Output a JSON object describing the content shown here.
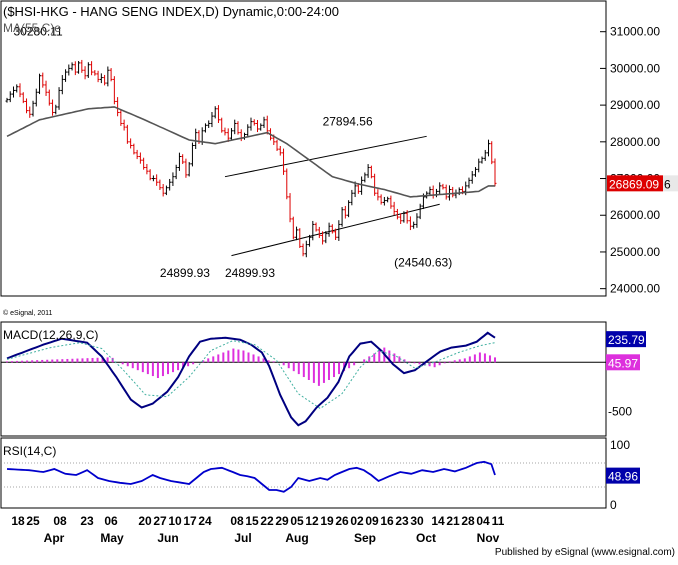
{
  "colors": {
    "background": "#ffffff",
    "frame": "#000000",
    "up_bar": "#000000",
    "down_bar": "#dd0000",
    "ma_line": "#555555",
    "channel": "#000000",
    "last_price_badge": "#dd0000",
    "macd_line": "#000080",
    "macd_signal": "#40b0a0",
    "macd_hist": "#dd30dd",
    "rsi_line": "#0000cc",
    "value_badge": "#0000aa"
  },
  "header": {
    "title": "($HSI-HKG - HANG SENG INDEX,D) Dynamic,0:00-24:00",
    "ma_label": "MA(55,C)e",
    "copyright": "© eSignal, 2011"
  },
  "footer": {
    "publisher": "Published by eSignal (www.esignal.com)"
  },
  "chart_data": [
    {
      "panel": "price",
      "type": "ohlc",
      "title": "($HSI-HKG - HANG SENG INDEX,D) Dynamic,0:00-24:00",
      "ylim": [
        23800,
        31700
      ],
      "y_ticks": [
        24000,
        25000,
        26000,
        27000,
        28000,
        29000,
        30000,
        31000
      ],
      "y_tick_labels": [
        "24000.00",
        "25000.00",
        "26000.00",
        "27000.00",
        "28000.00",
        "29000.00",
        "30000.00",
        "31000.00"
      ],
      "x_day_labels": [
        "18",
        "25",
        "08",
        "23",
        "06",
        "20",
        "27",
        "10",
        "17",
        "24",
        "08",
        "15",
        "22",
        "29",
        "05",
        "12",
        "19",
        "26",
        "02",
        "09",
        "16",
        "23",
        "30",
        "14",
        "21",
        "28",
        "04",
        "11"
      ],
      "x_month_labels": [
        "Apr",
        "May",
        "Jun",
        "Jul",
        "Aug",
        "Sep",
        "Oct",
        "Nov"
      ],
      "closes": [
        29150,
        29300,
        29400,
        29500,
        29300,
        29100,
        28850,
        28750,
        29050,
        29350,
        29800,
        29550,
        29350,
        29050,
        28800,
        28950,
        29400,
        29700,
        29900,
        30000,
        30100,
        29900,
        30150,
        29950,
        29800,
        30100,
        29900,
        29850,
        29700,
        29750,
        29600,
        29950,
        29700,
        29100,
        28800,
        28500,
        28400,
        28000,
        27900,
        27700,
        27600,
        27500,
        27300,
        27200,
        27000,
        27000,
        26900,
        26750,
        26600,
        26750,
        26900,
        27050,
        27300,
        27600,
        27450,
        27100,
        27400,
        27900,
        28250,
        28000,
        28300,
        28450,
        28500,
        28700,
        28900,
        28600,
        28300,
        28250,
        28100,
        28300,
        28500,
        28250,
        28100,
        28200,
        28400,
        28550,
        28500,
        28350,
        28450,
        28600,
        28300,
        28100,
        28000,
        27800,
        27700,
        27200,
        26500,
        25900,
        25400,
        25600,
        25150,
        24950,
        25200,
        25400,
        25750,
        25600,
        25450,
        25300,
        25500,
        25700,
        25550,
        25400,
        25750,
        26150,
        26000,
        26350,
        26600,
        26800,
        26650,
        26950,
        27100,
        27300,
        27050,
        26600,
        26500,
        26350,
        26400,
        26450,
        26250,
        26100,
        25950,
        25850,
        26050,
        25850,
        25700,
        25750,
        25950,
        26250,
        26500,
        26600,
        26700,
        26550,
        26650,
        26800,
        26750,
        26500,
        26700,
        26550,
        26600,
        26700,
        26650,
        26800,
        26950,
        27100,
        27250,
        27450,
        27550,
        27700,
        27950,
        27450,
        26869.09
      ],
      "ma": {
        "name": "MA(55,C)e",
        "anchors": [
          [
            0,
            28150
          ],
          [
            10,
            28600
          ],
          [
            25,
            28900
          ],
          [
            33,
            28950
          ],
          [
            41,
            28650
          ],
          [
            56,
            28050
          ],
          [
            64,
            27950
          ],
          [
            72,
            28100
          ],
          [
            80,
            28250
          ],
          [
            86,
            27950
          ],
          [
            93,
            27500
          ],
          [
            100,
            27050
          ],
          [
            108,
            26850
          ],
          [
            116,
            26700
          ],
          [
            124,
            26500
          ],
          [
            131,
            26550
          ],
          [
            138,
            26600
          ],
          [
            145,
            26650
          ],
          [
            148,
            26800
          ]
        ]
      },
      "last_price": "26869.09",
      "last_price_suffix": "6",
      "channel": {
        "upper": [
          [
            67,
            27050
          ],
          [
            129,
            28150
          ]
        ],
        "lower": [
          [
            69,
            24900
          ],
          [
            133,
            26300
          ]
        ]
      },
      "annotations": [
        {
          "label": "30280.11",
          "at": [
            2,
            30900
          ]
        },
        {
          "label": "24899.93",
          "at": [
            47,
            24320
          ]
        },
        {
          "label": "24899.93",
          "at": [
            67,
            24320
          ]
        },
        {
          "label": "27894.56",
          "at": [
            97,
            28450
          ]
        },
        {
          "label": "(24540.63)",
          "at": [
            119,
            24600
          ]
        }
      ]
    },
    {
      "panel": "macd",
      "type": "line",
      "label": "MACD(12,26,9,C)",
      "ylim": [
        -750,
        400
      ],
      "y_ticks": [
        -500
      ],
      "y_tick_labels": [
        "-500"
      ],
      "zero_line": 0,
      "series": [
        {
          "name": "MACD",
          "anchors": [
            [
              0,
              40
            ],
            [
              10,
              180
            ],
            [
              15,
              240
            ],
            [
              22,
              200
            ],
            [
              26,
              60
            ],
            [
              30,
              -150
            ],
            [
              34,
              -380
            ],
            [
              37,
              -460
            ],
            [
              40,
              -420
            ],
            [
              44,
              -300
            ],
            [
              47,
              -150
            ],
            [
              50,
              60
            ],
            [
              53,
              210
            ],
            [
              56,
              240
            ],
            [
              60,
              250
            ],
            [
              64,
              230
            ],
            [
              67,
              180
            ],
            [
              70,
              100
            ],
            [
              72,
              -40
            ],
            [
              75,
              -330
            ],
            [
              78,
              -560
            ],
            [
              80,
              -640
            ],
            [
              82,
              -600
            ],
            [
              85,
              -460
            ],
            [
              88,
              -360
            ],
            [
              91,
              -200
            ],
            [
              94,
              60
            ],
            [
              97,
              190
            ],
            [
              100,
              210
            ],
            [
              103,
              110
            ],
            [
              106,
              -20
            ],
            [
              109,
              -110
            ],
            [
              112,
              -80
            ],
            [
              116,
              30
            ],
            [
              119,
              110
            ],
            [
              122,
              150
            ],
            [
              126,
              170
            ],
            [
              129,
              210
            ],
            [
              132,
              300
            ],
            [
              134,
              250
            ]
          ]
        },
        {
          "name": "Signal",
          "anchors": [
            [
              0,
              30
            ],
            [
              12,
              150
            ],
            [
              20,
              200
            ],
            [
              26,
              140
            ],
            [
              32,
              -80
            ],
            [
              38,
              -330
            ],
            [
              44,
              -350
            ],
            [
              50,
              -150
            ],
            [
              56,
              120
            ],
            [
              62,
              220
            ],
            [
              68,
              180
            ],
            [
              74,
              20
            ],
            [
              80,
              -320
            ],
            [
              86,
              -470
            ],
            [
              92,
              -320
            ],
            [
              97,
              -50
            ],
            [
              102,
              120
            ],
            [
              107,
              60
            ],
            [
              112,
              -60
            ],
            [
              118,
              10
            ],
            [
              124,
              100
            ],
            [
              130,
              170
            ],
            [
              134,
              200
            ]
          ]
        }
      ],
      "histogram": [
        10,
        12,
        14,
        16,
        18,
        20,
        22,
        24,
        26,
        28,
        30,
        32,
        34,
        36,
        38,
        40,
        42,
        44,
        46,
        48,
        50,
        45,
        0,
        -20,
        -40,
        -60,
        -80,
        -100,
        -120,
        -140,
        -160,
        -140,
        -120,
        -100,
        -80,
        -60,
        -40,
        -20,
        0,
        20,
        40,
        60,
        80,
        100,
        120,
        140,
        130,
        120,
        100,
        80,
        60,
        40,
        20,
        10,
        0,
        -30,
        -60,
        -90,
        -120,
        -150,
        -180,
        -210,
        -240,
        -210,
        -180,
        -150,
        -120,
        -90,
        -60,
        -30,
        0,
        30,
        60,
        90,
        120,
        150,
        120,
        90,
        60,
        30,
        10,
        -10,
        -20,
        -30,
        -40,
        -50,
        -30,
        -10,
        10,
        20,
        30,
        40,
        60,
        80,
        100,
        90,
        70,
        50
      ],
      "value_labels": [
        {
          "label": "235.79",
          "value": 235.79
        },
        {
          "label": "45.97",
          "value": 0
        }
      ]
    },
    {
      "panel": "rsi",
      "type": "line",
      "label": "RSI(14,C)",
      "ylim": [
        -5,
        110
      ],
      "y_ticks": [
        0,
        100
      ],
      "y_tick_labels": [
        "0",
        "100"
      ],
      "reference_lines": [
        30,
        70
      ],
      "series": [
        {
          "name": "RSI(14,C)",
          "anchors": [
            [
              0,
              60
            ],
            [
              6,
              58
            ],
            [
              10,
              55
            ],
            [
              13,
              60
            ],
            [
              16,
              52
            ],
            [
              19,
              50
            ],
            [
              22,
              58
            ],
            [
              25,
              45
            ],
            [
              28,
              40
            ],
            [
              31,
              37
            ],
            [
              34,
              35
            ],
            [
              37,
              40
            ],
            [
              40,
              50
            ],
            [
              42,
              45
            ],
            [
              45,
              40
            ],
            [
              48,
              37
            ],
            [
              50,
              35
            ],
            [
              52,
              45
            ],
            [
              54,
              55
            ],
            [
              56,
              60
            ],
            [
              59,
              62
            ],
            [
              62,
              55
            ],
            [
              64,
              50
            ],
            [
              66,
              48
            ],
            [
              68,
              45
            ],
            [
              70,
              35
            ],
            [
              72,
              25
            ],
            [
              74,
              25
            ],
            [
              76,
              22
            ],
            [
              78,
              30
            ],
            [
              80,
              45
            ],
            [
              83,
              40
            ],
            [
              86,
              45
            ],
            [
              88,
              42
            ],
            [
              90,
              50
            ],
            [
              92,
              55
            ],
            [
              94,
              60
            ],
            [
              96,
              62
            ],
            [
              98,
              58
            ],
            [
              100,
              50
            ],
            [
              102,
              40
            ],
            [
              105,
              48
            ],
            [
              108,
              55
            ],
            [
              111,
              52
            ],
            [
              114,
              58
            ],
            [
              117,
              55
            ],
            [
              120,
              60
            ],
            [
              123,
              56
            ],
            [
              126,
              62
            ],
            [
              129,
              70
            ],
            [
              131,
              72
            ],
            [
              133,
              68
            ],
            [
              134,
              50
            ]
          ]
        }
      ],
      "value_labels": [
        {
          "label": "48.96",
          "value": 48.96
        }
      ]
    }
  ]
}
